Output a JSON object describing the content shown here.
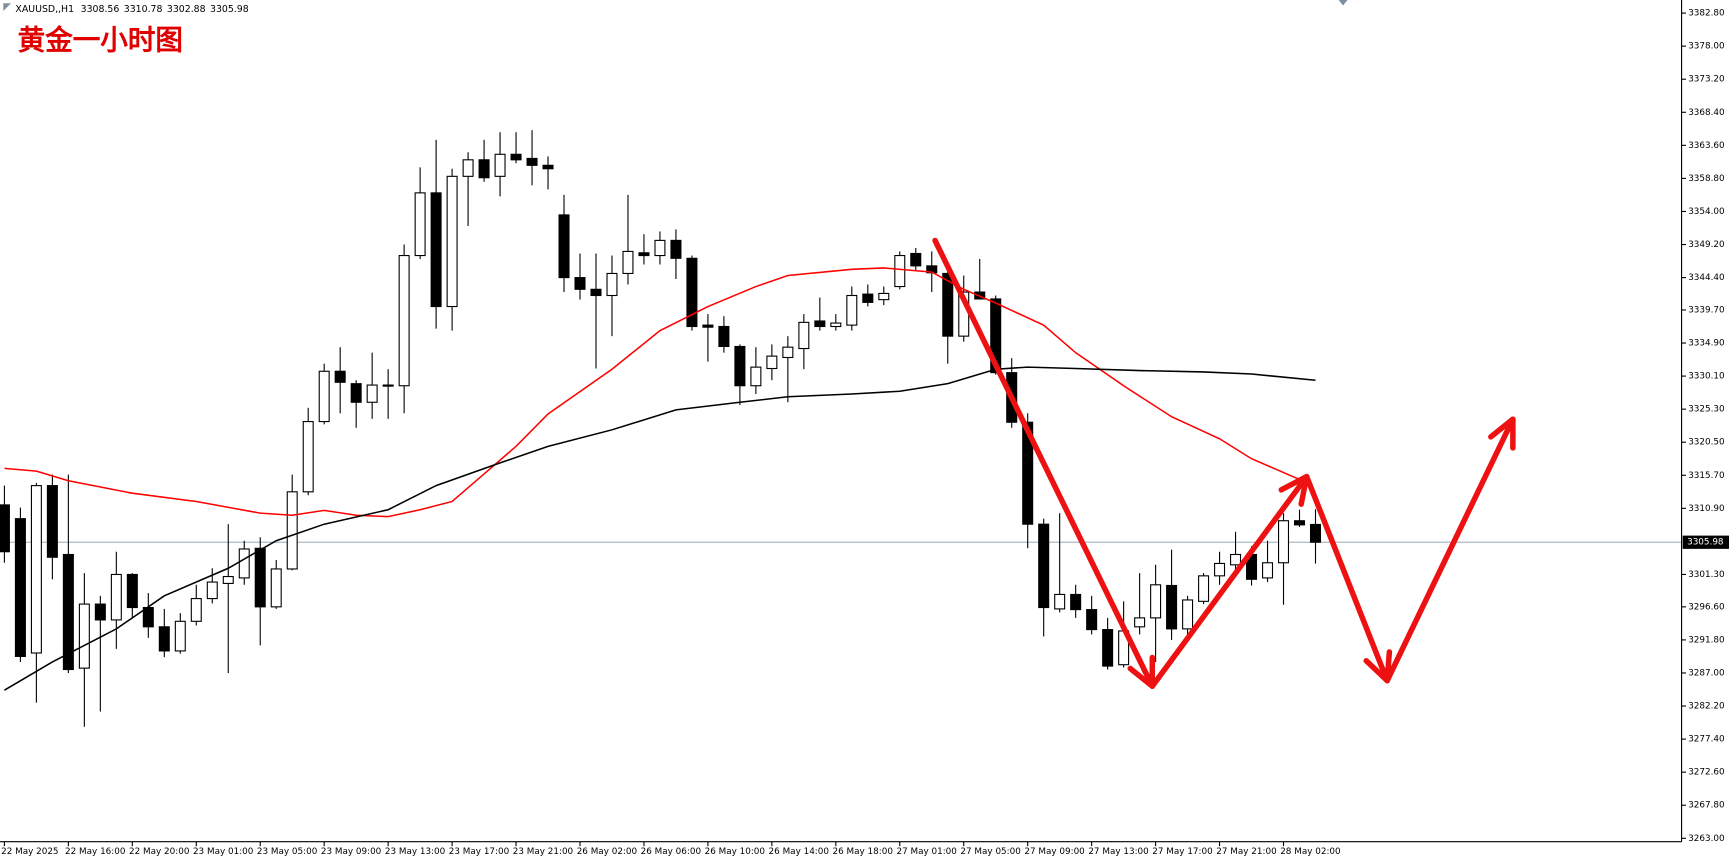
{
  "chart_data": {
    "type": "candlestick",
    "symbol": "XAUUSD,,H1",
    "title": "黄金一小时图",
    "categories": [
      "22 May 2025",
      null,
      null,
      null,
      "22 May 16:00",
      null,
      null,
      null,
      "22 May 20:00",
      null,
      null,
      null,
      "23 May 01:00",
      null,
      null,
      null,
      "23 May 05:00",
      null,
      null,
      null,
      "23 May 09:00",
      null,
      null,
      null,
      "23 May 13:00",
      null,
      null,
      null,
      "23 May 17:00",
      null,
      null,
      null,
      "23 May 21:00",
      null,
      null,
      null,
      "26 May 02:00",
      null,
      null,
      null,
      "26 May 06:00",
      null,
      null,
      null,
      "26 May 10:00",
      null,
      null,
      null,
      "26 May 14:00",
      null,
      null,
      null,
      "26 May 18:00",
      null,
      null,
      null,
      "27 May 01:00",
      null,
      null,
      null,
      "27 May 05:00",
      null,
      null,
      null,
      "27 May 09:00",
      null,
      null,
      null,
      "27 May 13:00",
      null,
      null,
      null,
      "27 May 17:00",
      null,
      null,
      null,
      "27 May 21:00",
      null,
      null,
      null,
      "28 May 02:00",
      null,
      null
    ],
    "open": [
      3311.4,
      3309.4,
      3289.9,
      3314.2,
      3304.2,
      3287.7,
      3297.0,
      3294.7,
      3301.3,
      3296.5,
      3293.7,
      3290.2,
      3294.5,
      3297.8,
      3300.0,
      3300.8,
      3305.1,
      3296.6,
      3302.1,
      3313.3,
      3323.5,
      3330.8,
      3329.0,
      3326.3,
      3328.8,
      3328.7,
      3347.6,
      3356.7,
      3340.2,
      3359.1,
      3361.5,
      3359.1,
      3362.3,
      3361.7,
      3360.7,
      3353.5,
      3344.4,
      3342.7,
      3341.8,
      3345.0,
      3348.0,
      3347.6,
      3349.8,
      3347.2,
      3337.5,
      3337.3,
      3334.4,
      3328.7,
      3331.2,
      3332.8,
      3334.1,
      3338.1,
      3337.3,
      3337.5,
      3342.0,
      3341.2,
      3343.1,
      3347.9,
      3346.1,
      3345.0,
      3335.9,
      3342.3,
      3341.3,
      3330.6,
      3323.4,
      3308.6,
      3296.3,
      3298.4,
      3296.2,
      3293.3,
      3288.2,
      3293.7,
      3295.0,
      3299.7,
      3293.4,
      3297.4,
      3301.1,
      3302.7,
      3304.2,
      3300.8,
      3303.0,
      3309.1,
      3308.56
    ],
    "high": [
      3314.2,
      3311.0,
      3314.6,
      3315.8,
      3315.8,
      3301.5,
      3298.2,
      3304.6,
      3301.5,
      3298.6,
      3296.3,
      3295.7,
      3299.8,
      3302.2,
      3308.6,
      3306.2,
      3306.7,
      3303.4,
      3315.8,
      3325.5,
      3331.9,
      3334.3,
      3329.5,
      3333.5,
      3331.1,
      3349.2,
      3360.4,
      3364.4,
      3360.2,
      3362.6,
      3364.4,
      3365.5,
      3365.5,
      3365.8,
      3362.0,
      3356.4,
      3347.9,
      3347.9,
      3347.6,
      3356.4,
      3350.7,
      3351.1,
      3351.4,
      3347.6,
      3339.1,
      3338.8,
      3334.7,
      3334.3,
      3334.7,
      3335.9,
      3339.1,
      3341.5,
      3339.1,
      3343.1,
      3343.4,
      3343.1,
      3348.2,
      3348.7,
      3348.2,
      3345.5,
      3344.7,
      3347.1,
      3341.8,
      3332.7,
      3324.7,
      3309.4,
      3310.2,
      3299.8,
      3298.2,
      3295.0,
      3297.4,
      3301.5,
      3302.7,
      3304.9,
      3298.2,
      3301.5,
      3304.6,
      3307.5,
      3305.4,
      3306.2,
      3310.2,
      3310.7,
      3310.78
    ],
    "low": [
      3303.0,
      3288.6,
      3282.7,
      3300.6,
      3287.0,
      3279.2,
      3281.4,
      3290.5,
      3295.0,
      3292.1,
      3289.3,
      3289.8,
      3293.9,
      3297.1,
      3287.0,
      3299.8,
      3291.0,
      3296.3,
      3301.9,
      3312.8,
      3323.1,
      3324.7,
      3322.6,
      3323.9,
      3323.9,
      3324.7,
      3347.1,
      3337.0,
      3336.7,
      3351.9,
      3358.3,
      3356.2,
      3361.0,
      3357.8,
      3357.2,
      3342.3,
      3341.2,
      3331.2,
      3335.9,
      3343.4,
      3346.3,
      3346.3,
      3344.2,
      3336.7,
      3332.2,
      3333.5,
      3325.9,
      3327.5,
      3329.5,
      3326.3,
      3331.1,
      3336.7,
      3336.7,
      3336.7,
      3340.2,
      3340.4,
      3342.7,
      3345.5,
      3342.3,
      3331.9,
      3335.1,
      3341.2,
      3330.3,
      3322.6,
      3305.1,
      3292.3,
      3295.8,
      3295.0,
      3292.6,
      3287.5,
      3287.8,
      3292.6,
      3288.6,
      3291.8,
      3292.6,
      3297.0,
      3299.8,
      3301.5,
      3299.7,
      3300.2,
      3296.9,
      3308.2,
      3302.88
    ],
    "close": [
      3304.6,
      3289.4,
      3314.2,
      3303.8,
      3287.5,
      3297.0,
      3294.7,
      3301.3,
      3296.5,
      3293.7,
      3290.2,
      3294.5,
      3297.8,
      3300.2,
      3301.0,
      3305.0,
      3296.6,
      3302.1,
      3313.3,
      3323.5,
      3330.8,
      3329.2,
      3326.3,
      3328.8,
      3328.7,
      3347.6,
      3356.7,
      3340.2,
      3359.1,
      3361.5,
      3358.9,
      3362.3,
      3361.5,
      3360.7,
      3360.2,
      3344.4,
      3342.7,
      3341.8,
      3345.0,
      3348.2,
      3347.6,
      3349.8,
      3347.2,
      3337.3,
      3337.2,
      3334.4,
      3328.7,
      3331.4,
      3333.0,
      3334.3,
      3337.9,
      3337.3,
      3337.8,
      3341.8,
      3340.8,
      3342.1,
      3347.6,
      3346.1,
      3345.1,
      3335.9,
      3342.3,
      3341.3,
      3330.6,
      3323.4,
      3308.6,
      3296.5,
      3298.4,
      3296.2,
      3293.3,
      3288.0,
      3293.1,
      3295.0,
      3299.8,
      3293.4,
      3297.6,
      3301.1,
      3302.9,
      3304.2,
      3300.6,
      3303.0,
      3309.1,
      3308.5,
      3305.98
    ],
    "up_color": "#ffffff",
    "down_color": "#000000",
    "lines": [
      {
        "color": "#ff0000",
        "x": [
          0,
          2,
          4,
          8,
          12,
          16,
          18,
          20,
          22,
          24,
          26,
          28,
          30,
          32,
          34,
          38,
          41,
          44,
          47,
          49,
          53,
          55,
          58,
          60,
          62,
          65,
          67,
          70,
          73,
          76,
          78,
          81
        ],
        "values": [
          3316.7,
          3316.3,
          3314.9,
          3313.1,
          3311.9,
          3310.2,
          3309.9,
          3310.6,
          3309.9,
          3309.7,
          3310.7,
          3311.9,
          3315.9,
          3319.9,
          3324.6,
          3331.1,
          3336.7,
          3340.2,
          3343.1,
          3344.7,
          3345.6,
          3345.8,
          3345.2,
          3342.7,
          3340.7,
          3337.5,
          3333.5,
          3328.7,
          3324.2,
          3321.0,
          3318.1,
          3315.1
        ]
      },
      {
        "color": "#000000",
        "x": [
          0,
          3,
          7,
          10,
          14,
          17,
          20,
          24,
          27,
          31,
          34,
          38,
          42,
          46,
          49,
          53,
          56,
          59,
          62,
          64,
          67,
          71,
          75,
          78,
          82
        ],
        "values": [
          3284.5,
          3288.6,
          3293.4,
          3298.2,
          3302.2,
          3306.2,
          3308.6,
          3310.7,
          3314.2,
          3317.5,
          3319.9,
          3322.3,
          3325.2,
          3326.3,
          3327.1,
          3327.5,
          3327.9,
          3329.0,
          3331.1,
          3331.4,
          3331.2,
          3330.9,
          3330.7,
          3330.4,
          3329.5
        ]
      }
    ],
    "ylim": [
      3262.5,
      3384.7
    ],
    "yticks": [
      {
        "value": 3382.8,
        "label": "3382.80"
      },
      {
        "value": 3378.0,
        "label": "3378.00"
      },
      {
        "value": 3373.2,
        "label": "3373.20"
      },
      {
        "value": 3368.4,
        "label": "3368.40"
      },
      {
        "value": 3363.6,
        "label": "3363.60"
      },
      {
        "value": 3358.8,
        "label": "3358.80"
      },
      {
        "value": 3354.0,
        "label": "3354.00"
      },
      {
        "value": 3349.2,
        "label": "3349.20"
      },
      {
        "value": 3344.4,
        "label": "3344.40"
      },
      {
        "value": 3339.7,
        "label": "3339.70"
      },
      {
        "value": 3334.9,
        "label": "3334.90"
      },
      {
        "value": 3330.1,
        "label": "3330.10"
      },
      {
        "value": 3325.3,
        "label": "3325.30"
      },
      {
        "value": 3320.5,
        "label": "3320.50"
      },
      {
        "value": 3315.7,
        "label": "3315.70"
      },
      {
        "value": 3310.9,
        "label": "3310.90"
      },
      {
        "value": 3301.3,
        "label": "3301.30"
      },
      {
        "value": 3296.6,
        "label": "3296.60"
      },
      {
        "value": 3291.8,
        "label": "3291.80"
      },
      {
        "value": 3287.0,
        "label": "3287.00"
      },
      {
        "value": 3282.2,
        "label": "3282.20"
      },
      {
        "value": 3277.4,
        "label": "3277.40"
      },
      {
        "value": 3272.6,
        "label": "3272.60"
      },
      {
        "value": 3267.8,
        "label": "3267.80"
      },
      {
        "value": 3263.0,
        "label": "3263.00"
      }
    ],
    "price_line_color": "#8c9cab"
  }
}
